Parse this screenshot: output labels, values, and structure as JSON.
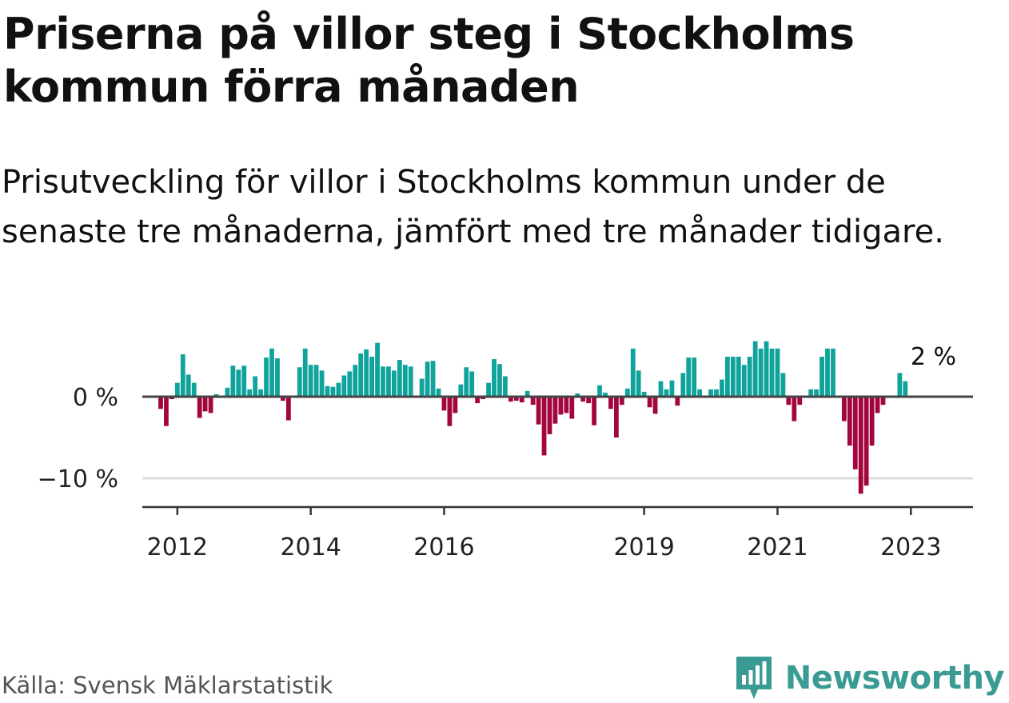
{
  "title": "Priserna på villor steg i Stockholms kommun förra månaden",
  "subtitle": "Prisutveckling för villor i Stockholms kommun under de senaste tre månaderna, jämfört med tre månader tidigare.",
  "source": "Källa: Svensk Mäklarstatistik",
  "brand": {
    "name": "Newsworthy",
    "icon": "newsworthy-logo-icon"
  },
  "colors": {
    "positive": "#0fa39b",
    "negative": "#a3063f",
    "axis": "#444444",
    "grid": "#dddddd",
    "brand": "#3a9b94"
  },
  "chart_data": {
    "type": "bar",
    "title": "",
    "xlabel": "",
    "ylabel": "",
    "start": {
      "year": 2011,
      "month": 10
    },
    "x_ticks": [
      "2012",
      "2014",
      "2016",
      "2019",
      "2021",
      "2023"
    ],
    "y_ticks": [
      {
        "value": 0,
        "label": "0 %"
      },
      {
        "value": -10,
        "label": "−10 %"
      }
    ],
    "ylim": [
      -13,
      6
    ],
    "last_value_label": "2 %",
    "values": [
      -1.5,
      -3.6,
      -0.3,
      1.7,
      5.2,
      2.7,
      1.7,
      -2.6,
      -1.8,
      -2.0,
      0.3,
      0.0,
      1.1,
      3.8,
      3.3,
      3.8,
      0.9,
      2.5,
      0.9,
      4.8,
      5.9,
      4.7,
      -0.5,
      -2.9,
      0.0,
      3.6,
      5.9,
      3.9,
      3.9,
      3.2,
      1.3,
      1.2,
      1.7,
      2.6,
      3.1,
      3.9,
      5.3,
      5.8,
      4.9,
      6.6,
      3.7,
      3.7,
      3.2,
      4.5,
      3.9,
      3.7,
      0.0,
      2.2,
      4.3,
      4.4,
      1.0,
      -1.7,
      -3.6,
      -2.0,
      1.5,
      3.6,
      3.1,
      -0.8,
      -0.3,
      1.7,
      4.6,
      4.0,
      2.5,
      -0.6,
      -0.5,
      -0.7,
      0.7,
      -1.0,
      -3.4,
      -7.2,
      -4.6,
      -3.3,
      -2.2,
      -2.0,
      -2.7,
      0.4,
      -0.6,
      -0.8,
      -3.5,
      1.4,
      0.5,
      -1.5,
      -5.0,
      -1.0,
      1.0,
      5.9,
      3.2,
      0.6,
      -1.3,
      -2.1,
      1.9,
      0.9,
      2.0,
      -1.1,
      2.9,
      4.8,
      4.8,
      0.9,
      0.0,
      0.9,
      0.9,
      2.1,
      4.9,
      4.9,
      4.9,
      3.9,
      4.9,
      6.8,
      5.9,
      6.8,
      5.9,
      5.9,
      2.9,
      -1.0,
      -3.0,
      -1.0,
      0.0,
      0.9,
      0.9,
      4.9,
      5.9,
      5.9,
      0.0,
      -3.0,
      -6.0,
      -8.9,
      -11.9,
      -10.9,
      -6.0,
      -2.0,
      -1.0,
      0.0,
      0.0,
      2.9,
      1.9
    ]
  }
}
